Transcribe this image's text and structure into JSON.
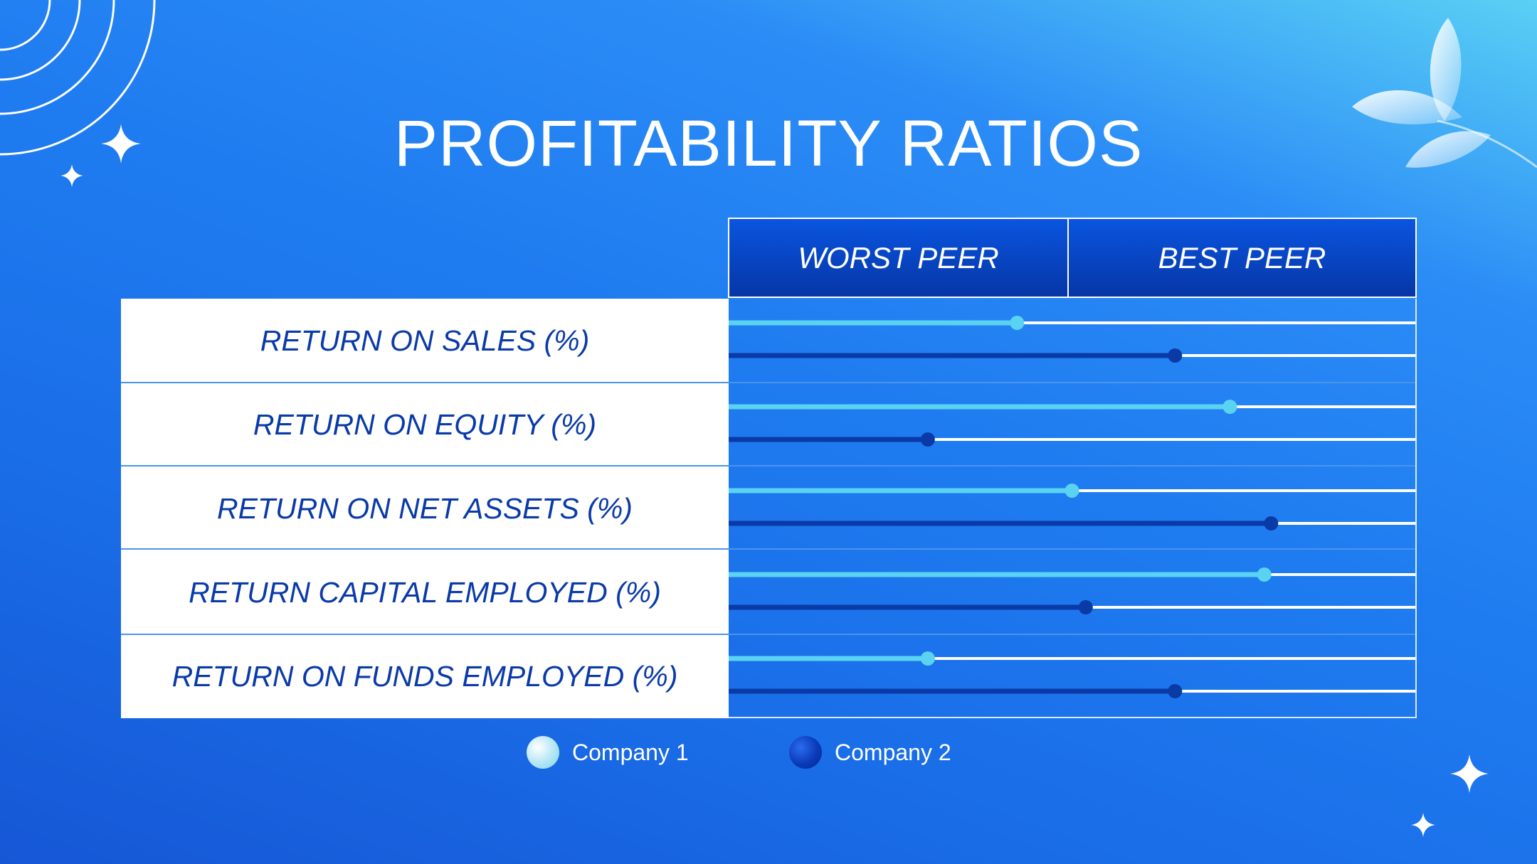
{
  "title": "PROFITABILITY RATIOS",
  "header": {
    "worst": "WORST PEER",
    "best": "BEST PEER"
  },
  "colors": {
    "company1": "#5ad2f2",
    "company2": "#0a3aa6",
    "track": "#ffffff"
  },
  "chart_data": {
    "type": "bar",
    "title": "PROFITABILITY RATIOS",
    "scale": [
      "WORST PEER",
      "BEST PEER"
    ],
    "xlim": [
      0,
      100
    ],
    "categories": [
      "RETURN ON SALES (%)",
      "RETURN ON EQUITY (%)",
      "RETURN ON NET ASSETS (%)",
      "RETURN CAPITAL EMPLOYED (%)",
      "RETURN ON FUNDS EMPLOYED (%)"
    ],
    "series": [
      {
        "name": "Company 1",
        "values": [
          42,
          73,
          50,
          78,
          29
        ]
      },
      {
        "name": "Company 2",
        "values": [
          65,
          29,
          79,
          52,
          65
        ]
      }
    ],
    "legend": "bottom"
  },
  "legend": {
    "company1": "Company 1",
    "company2": "Company 2"
  }
}
